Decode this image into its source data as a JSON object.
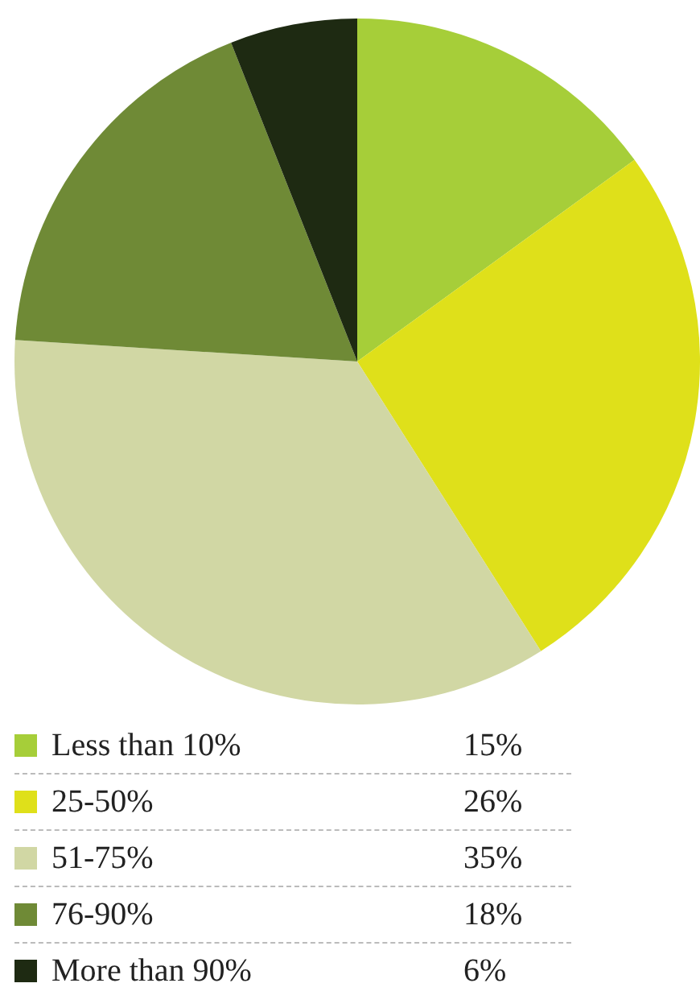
{
  "chart_data": {
    "type": "pie",
    "categories": [
      "Less than 10%",
      "25-50%",
      "51-75%",
      "76-90%",
      "More than 90%"
    ],
    "values": [
      15,
      26,
      35,
      18,
      6
    ],
    "value_labels": [
      "15%",
      "26%",
      "35%",
      "18%",
      "6%"
    ],
    "colors": [
      "#a6ce39",
      "#dfe01a",
      "#d1d7a4",
      "#6f8a36",
      "#1e2a12"
    ],
    "legend": "bottom"
  }
}
